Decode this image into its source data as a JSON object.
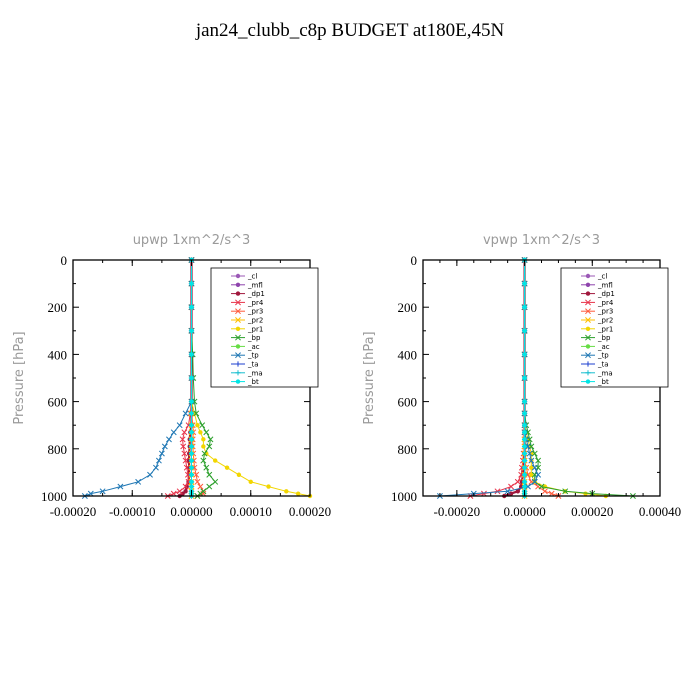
{
  "title": "jan24_clubb_c8p  BUDGET at180E,45N",
  "legend_entries": [
    "_cl",
    "_mfl",
    "_dp1",
    "_pr4",
    "_pr3",
    "_pr2",
    "_pr1",
    "_bp",
    "_ac",
    "_tp",
    "_ta",
    "_ma",
    "_bt"
  ],
  "series_colors": [
    "#9b59b6",
    "#8e44ad",
    "#a0173c",
    "#e8334a",
    "#ff5a3c",
    "#ffc000",
    "#f2d600",
    "#2ca02c",
    "#66dd44",
    "#1f77b4",
    "#1e3fcf",
    "#17becf",
    "#00e5e5"
  ],
  "chart_data": [
    {
      "type": "line",
      "title": "upwp   1xm^2/s^3",
      "xlabel": "",
      "ylabel": "Pressure [hPa]",
      "xlim": [
        -0.0002,
        0.0002
      ],
      "ylim": [
        1000,
        0
      ],
      "xticks": [
        "-0.00020",
        "-0.00010",
        "0.00000",
        "0.00010",
        "0.00020"
      ],
      "xtick_values": [
        -0.0002,
        -0.0001,
        0,
        0.0001,
        0.0002
      ],
      "yticks": [
        "0",
        "200",
        "400",
        "600",
        "800",
        "1000"
      ],
      "ytick_values": [
        0,
        200,
        400,
        600,
        800,
        1000
      ],
      "legend_position": "top-right",
      "levels": [
        0,
        100,
        200,
        300,
        400,
        500,
        600,
        650,
        700,
        730,
        760,
        790,
        820,
        850,
        880,
        910,
        940,
        960,
        980,
        990,
        1000
      ],
      "series": [
        {
          "name": "_cl",
          "values": [
            0,
            0,
            0,
            0,
            0,
            0,
            0,
            0,
            0,
            0,
            0,
            0,
            0,
            0,
            0,
            0,
            0,
            0,
            0,
            0,
            0
          ]
        },
        {
          "name": "_mfl",
          "values": [
            0,
            0,
            0,
            0,
            0,
            0,
            0,
            0,
            0,
            0,
            0,
            0,
            0,
            0,
            0,
            0,
            0,
            0,
            0,
            0,
            0
          ]
        },
        {
          "name": "_dp1",
          "values": [
            0,
            0,
            0,
            0,
            0,
            0,
            0,
            0,
            0,
            -2e-06,
            -3e-06,
            -3e-06,
            -4e-06,
            -4e-06,
            -4e-06,
            -4e-06,
            -5e-06,
            -8e-06,
            -1e-05,
            -1.5e-05,
            -2e-05
          ]
        },
        {
          "name": "_pr4",
          "values": [
            0,
            0,
            0,
            0,
            0,
            0,
            0,
            -2e-06,
            -5e-06,
            -1.2e-05,
            -1.5e-05,
            -1.4e-05,
            -1.2e-05,
            -1e-05,
            -8e-06,
            -6e-06,
            -5e-06,
            -1e-05,
            -2e-05,
            -3e-05,
            -4e-05
          ]
        },
        {
          "name": "_pr3",
          "values": [
            0,
            0,
            0,
            0,
            0,
            0,
            0,
            0,
            2e-06,
            3e-06,
            2e-06,
            2e-06,
            3e-06,
            4e-06,
            5e-06,
            8e-06,
            1e-05,
            1.5e-05,
            2e-05,
            2e-05,
            1e-05
          ]
        },
        {
          "name": "_pr2",
          "values": [
            0,
            0,
            0,
            0,
            0,
            0,
            0,
            0,
            0,
            0,
            0,
            0,
            0,
            0,
            0,
            0,
            0,
            0,
            0,
            0,
            0
          ]
        },
        {
          "name": "_pr1",
          "values": [
            0,
            0,
            0,
            0,
            0,
            0,
            0,
            5e-06,
            1e-05,
            1.5e-05,
            2e-05,
            2e-05,
            2.5e-05,
            4e-05,
            6e-05,
            8e-05,
            0.0001,
            0.00013,
            0.00016,
            0.00018,
            0.0002
          ]
        },
        {
          "name": "_bp",
          "values": [
            0,
            0,
            0,
            0,
            2e-06,
            3e-06,
            5e-06,
            8e-06,
            1.8e-05,
            2.5e-05,
            3.2e-05,
            3e-05,
            2.2e-05,
            2e-05,
            2.5e-05,
            3e-05,
            4e-05,
            3e-05,
            2e-05,
            1.5e-05,
            1e-05
          ]
        },
        {
          "name": "_ac",
          "values": [
            0,
            0,
            0,
            0,
            0,
            0,
            0,
            0,
            0,
            0,
            0,
            0,
            0,
            0,
            0,
            0,
            0,
            0,
            0,
            0,
            0
          ]
        },
        {
          "name": "_tp",
          "values": [
            0,
            0,
            0,
            0,
            0,
            0,
            0,
            -1e-05,
            -2e-05,
            -3e-05,
            -3.8e-05,
            -4.5e-05,
            -5e-05,
            -5.5e-05,
            -6e-05,
            -7e-05,
            -9e-05,
            -0.00012,
            -0.00015,
            -0.00017,
            -0.00018
          ]
        },
        {
          "name": "_ta",
          "values": [
            0,
            0,
            0,
            0,
            0,
            0,
            0,
            0,
            0,
            0,
            0,
            0,
            0,
            0,
            0,
            0,
            0,
            0,
            0,
            0,
            0
          ]
        },
        {
          "name": "_ma",
          "values": [
            0,
            0,
            0,
            0,
            0,
            0,
            0,
            0,
            0,
            0,
            0,
            0,
            0,
            0,
            0,
            0,
            0,
            0,
            0,
            0,
            0
          ]
        },
        {
          "name": "_bt",
          "values": [
            0,
            0,
            0,
            0,
            0,
            0,
            0,
            0,
            0,
            0,
            0,
            0,
            0,
            0,
            0,
            0,
            0,
            0,
            0,
            0,
            0
          ]
        }
      ]
    },
    {
      "type": "line",
      "title": "vpwp   1xm^2/s^3",
      "xlabel": "",
      "ylabel": "Pressure [hPa]",
      "xlim": [
        -0.0003,
        0.0004
      ],
      "ylim": [
        1000,
        0
      ],
      "xticks": [
        "-0.00020",
        "0.00000",
        "0.00020",
        "0.00040"
      ],
      "xtick_values": [
        -0.0002,
        0,
        0.0002,
        0.0004
      ],
      "yticks": [
        "0",
        "200",
        "400",
        "600",
        "800",
        "1000"
      ],
      "ytick_values": [
        0,
        200,
        400,
        600,
        800,
        1000
      ],
      "legend_position": "top-right",
      "levels": [
        0,
        100,
        200,
        300,
        400,
        500,
        600,
        650,
        700,
        730,
        760,
        790,
        820,
        850,
        880,
        910,
        940,
        960,
        980,
        990,
        1000
      ],
      "series": [
        {
          "name": "_cl",
          "values": [
            0,
            0,
            0,
            0,
            0,
            0,
            0,
            0,
            0,
            0,
            0,
            0,
            0,
            0,
            0,
            0,
            0,
            0,
            0,
            0,
            0
          ]
        },
        {
          "name": "_mfl",
          "values": [
            0,
            0,
            0,
            0,
            0,
            0,
            0,
            0,
            0,
            0,
            0,
            0,
            0,
            0,
            0,
            0,
            0,
            0,
            0,
            0,
            0
          ]
        },
        {
          "name": "_dp1",
          "values": [
            0,
            0,
            0,
            0,
            0,
            0,
            0,
            0,
            0,
            0,
            0,
            0,
            0,
            0,
            -3e-06,
            -5e-06,
            -8e-06,
            -1e-05,
            -2e-05,
            -4e-05,
            -6e-05
          ]
        },
        {
          "name": "_pr4",
          "values": [
            0,
            0,
            0,
            0,
            0,
            0,
            0,
            0,
            0,
            0,
            0,
            0,
            -3e-06,
            -5e-06,
            -8e-06,
            -1e-05,
            -2e-05,
            -4e-05,
            -8e-05,
            -0.00012,
            -0.00016
          ]
        },
        {
          "name": "_pr3",
          "values": [
            0,
            0,
            0,
            0,
            0,
            0,
            0,
            0,
            0,
            0,
            0,
            0,
            0,
            0,
            5e-06,
            1e-05,
            2e-05,
            4e-05,
            6e-05,
            8e-05,
            0.0001
          ]
        },
        {
          "name": "_pr2",
          "values": [
            0,
            0,
            0,
            0,
            0,
            0,
            0,
            0,
            0,
            0,
            0,
            0,
            0,
            0,
            0,
            0,
            0,
            0,
            0,
            0,
            0
          ]
        },
        {
          "name": "_pr1",
          "values": [
            0,
            0,
            0,
            0,
            0,
            0,
            0,
            0,
            0,
            5e-06,
            1e-05,
            1.5e-05,
            2e-05,
            2e-05,
            2e-05,
            2e-05,
            3e-05,
            6e-05,
            0.00012,
            0.00018,
            0.00024
          ]
        },
        {
          "name": "_bp",
          "values": [
            0,
            0,
            0,
            0,
            0,
            0,
            0,
            0,
            5e-06,
            1e-05,
            1.5e-05,
            2e-05,
            3e-05,
            4e-05,
            4e-05,
            3e-05,
            3e-05,
            5e-05,
            0.00012,
            0.0002,
            0.00032
          ]
        },
        {
          "name": "_ac",
          "values": [
            0,
            0,
            0,
            0,
            0,
            0,
            0,
            0,
            0,
            0,
            0,
            0,
            0,
            0,
            0,
            0,
            0,
            0,
            0,
            0,
            0
          ]
        },
        {
          "name": "_tp",
          "values": [
            0,
            0,
            0,
            0,
            0,
            0,
            0,
            0,
            0,
            0,
            5e-06,
            1e-05,
            1.5e-05,
            2e-05,
            3e-05,
            4e-05,
            3e-05,
            1e-05,
            -5e-05,
            -0.00015,
            -0.00025
          ]
        },
        {
          "name": "_ta",
          "values": [
            0,
            0,
            0,
            0,
            0,
            0,
            0,
            0,
            0,
            0,
            0,
            0,
            0,
            0,
            0,
            0,
            0,
            0,
            0,
            0,
            0
          ]
        },
        {
          "name": "_ma",
          "values": [
            0,
            0,
            0,
            0,
            0,
            0,
            0,
            0,
            0,
            0,
            0,
            0,
            0,
            0,
            0,
            0,
            0,
            0,
            0,
            0,
            0
          ]
        },
        {
          "name": "_bt",
          "values": [
            0,
            0,
            0,
            0,
            0,
            0,
            0,
            0,
            0,
            0,
            0,
            0,
            0,
            0,
            0,
            0,
            0,
            0,
            0,
            0,
            0
          ]
        }
      ]
    }
  ]
}
